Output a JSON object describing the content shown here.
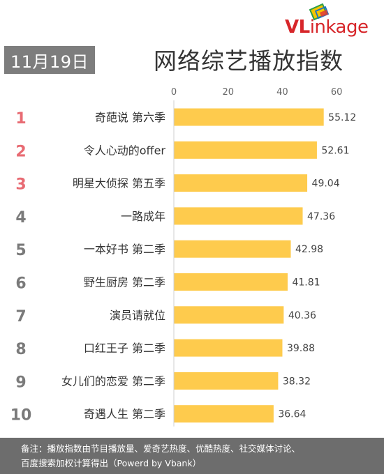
{
  "logo": {
    "brand_v": "VL",
    "brand_mid": "ink",
    "brand_end": "age"
  },
  "date": "11月19日",
  "title": "网络综艺播放指数",
  "chart_data": {
    "type": "bar",
    "orientation": "horizontal",
    "title": "网络综艺播放指数",
    "ranks": [
      "1",
      "2",
      "3",
      "4",
      "5",
      "6",
      "7",
      "8",
      "9",
      "10"
    ],
    "categories": [
      "奇葩说 第六季",
      "令人心动的offer",
      "明星大侦探 第五季",
      "一路成年",
      "一本好书 第二季",
      "野生厨房 第二季",
      "演员请就位",
      "口红王子 第二季",
      "女儿们的恋爱 第二季",
      "奇遇人生 第二季"
    ],
    "values": [
      55.12,
      52.61,
      49.04,
      47.36,
      42.98,
      41.81,
      40.36,
      39.88,
      38.32,
      36.64
    ],
    "value_labels": [
      "55.12",
      "52.61",
      "49.04",
      "47.36",
      "42.98",
      "41.81",
      "40.36",
      "39.88",
      "38.32",
      "36.64"
    ],
    "xlim": [
      0,
      70
    ],
    "xticks": [
      "0",
      "20",
      "40",
      "60"
    ],
    "xtick_values": [
      0,
      20,
      40,
      60
    ],
    "axis_position": "top",
    "grid": false,
    "colors": {
      "bar": "#fecb4d",
      "rank_top": "#e86b73",
      "rank_other": "#7a7a7a"
    }
  },
  "footnote": {
    "line1": "备注：播放指数由节目播放量、爱奇艺热度、优酷热度、社交媒体讨论、",
    "line2": "百度搜索加权计算得出（Powerd by Vbank）"
  }
}
